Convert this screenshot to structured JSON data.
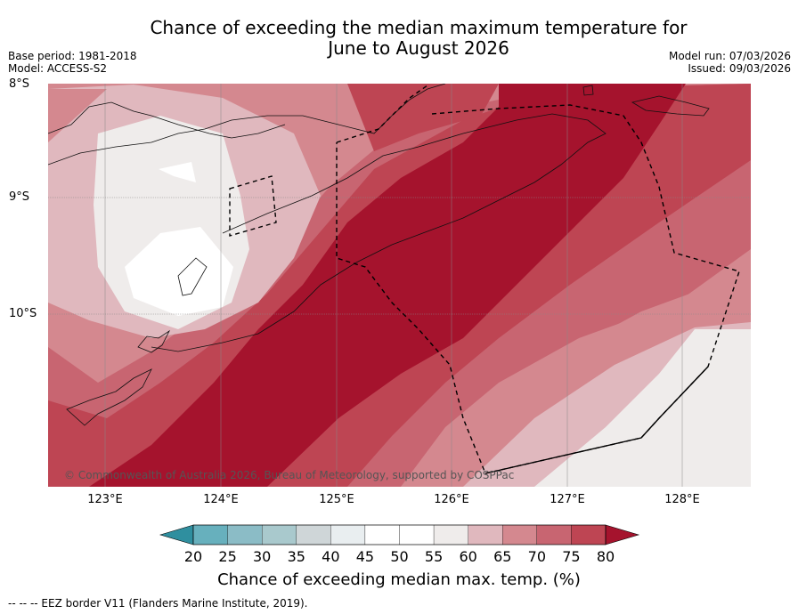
{
  "title": {
    "line1": "Chance of exceeding the median maximum temperature for",
    "line2": "June to August 2026"
  },
  "meta_left": {
    "base_period": "Base period: 1981-2018",
    "model": "Model: ACCESS-S2"
  },
  "meta_right": {
    "model_run": "Model run: 07/03/2026",
    "issued": "Issued: 09/03/2026"
  },
  "latitude_labels": [
    "8°S",
    "9°S",
    "10°S"
  ],
  "longitude_labels": [
    "123°E",
    "124°E",
    "125°E",
    "126°E",
    "127°E",
    "128°E"
  ],
  "copyright": "© Commonwealth of Australia 2026, Bureau of Meteorology, supported by COSPPac",
  "colorbar": {
    "ticks": [
      "20",
      "25",
      "30",
      "35",
      "40",
      "45",
      "50",
      "55",
      "60",
      "65",
      "70",
      "75",
      "80"
    ],
    "colors": [
      "#2f8f9f",
      "#67b0bd",
      "#8bbcc6",
      "#a9c9cd",
      "#cfd6d8",
      "#e9eef0",
      "#ffffff",
      "#ffffff",
      "#efeceb",
      "#e0b8be",
      "#d4888f",
      "#c86571",
      "#be4553",
      "#a5132d"
    ],
    "label": "Chance of exceeding median max. temp. (%)"
  },
  "footer": "--  --  -- EEZ border V11 (Flanders Marine Institute, 2019)."
}
